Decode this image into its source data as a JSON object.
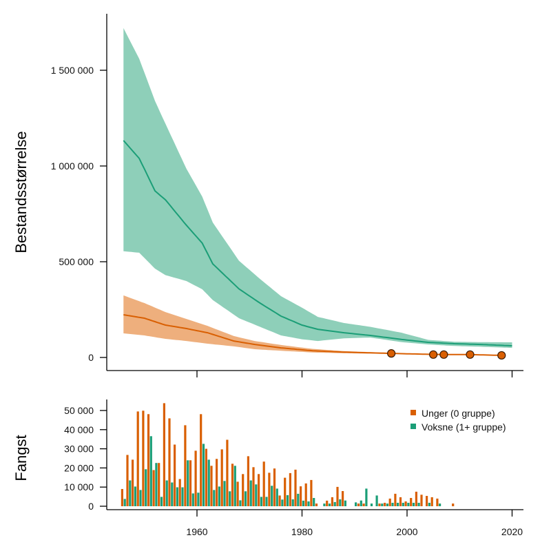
{
  "chart_data": [
    {
      "type": "line",
      "panel": "top",
      "title": "",
      "xlabel": "",
      "ylabel": "Bestandsstørrelse",
      "xlim": [
        1944,
        2022
      ],
      "ylim": [
        -50000,
        1800000
      ],
      "xticks": [
        1960,
        1980,
        2000,
        2020
      ],
      "yticks": [
        0,
        500000,
        1000000,
        1500000
      ],
      "ytick_labels": [
        "0",
        "500 000",
        "1 000 000",
        "1 500 000"
      ],
      "grid": false,
      "series": [
        {
          "name": "Voksne (1+ gruppe)",
          "color": "#1b9e77",
          "band_color": "#8ecfb9",
          "x": [
            1946,
            1949,
            1952,
            1954,
            1958,
            1961,
            1963,
            1968,
            1972,
            1976,
            1980,
            1983,
            1988,
            1993,
            1999,
            2004,
            2009,
            2014,
            2020
          ],
          "median": [
            1133000,
            1040000,
            870000,
            823000,
            690000,
            597000,
            489000,
            358000,
            284000,
            216000,
            169000,
            147000,
            129000,
            115000,
            94000,
            79000,
            72000,
            68000,
            61000
          ],
          "upper": [
            1720000,
            1560000,
            1340000,
            1220000,
            985000,
            840000,
            705000,
            505000,
            410000,
            320000,
            260000,
            212000,
            180000,
            160000,
            129000,
            92000,
            82000,
            80000,
            79000
          ],
          "lower": [
            555000,
            547000,
            464000,
            430000,
            399000,
            356000,
            300000,
            205000,
            160000,
            115000,
            95000,
            86000,
            100000,
            104000,
            80000,
            68000,
            60000,
            56000,
            50000
          ]
        },
        {
          "name": "Unger (0 gruppe)",
          "color": "#d95f02",
          "band_color": "#eeaf7d",
          "x": [
            1946,
            1950,
            1954,
            1958,
            1962,
            1967,
            1971,
            1976,
            1982,
            1988,
            1997,
            2005,
            2012,
            2018
          ],
          "median": [
            223000,
            205000,
            169000,
            151000,
            129000,
            86000,
            68000,
            50000,
            35000,
            28000,
            21000,
            16000,
            15000,
            11000
          ],
          "upper": [
            324000,
            284000,
            237000,
            201000,
            165000,
            112000,
            86000,
            65000,
            45000,
            33000,
            24000,
            17000,
            16000,
            12000
          ],
          "lower": [
            126000,
            115000,
            97000,
            86000,
            72000,
            58000,
            43000,
            35000,
            26000,
            22000,
            19000,
            15000,
            14000,
            10000
          ]
        }
      ],
      "points": {
        "name": "Unger (0 gruppe) observations",
        "color": "#d95f02",
        "x": [
          1997,
          2005,
          2007,
          2012,
          2018
        ],
        "y": [
          21000,
          15000,
          15000,
          15000,
          11000
        ]
      }
    },
    {
      "type": "bar",
      "panel": "bottom",
      "title": "",
      "xlabel": "",
      "ylabel": "Fangst",
      "xlim": [
        1944,
        2022
      ],
      "ylim": [
        0,
        55000
      ],
      "xticks": [
        1960,
        1980,
        2000,
        2020
      ],
      "xtick_labels": [
        "1960",
        "1980",
        "2000",
        "2020"
      ],
      "yticks": [
        0,
        10000,
        20000,
        30000,
        40000,
        50000
      ],
      "ytick_labels": [
        "0",
        "10 000",
        "20 000",
        "30 000",
        "40 000",
        "50 000"
      ],
      "legend": {
        "position": "top-right",
        "entries": [
          "Unger (0 gruppe)",
          "Voksne (1+ gruppe)"
        ]
      },
      "grid": false,
      "categories": [
        1946,
        1947,
        1948,
        1949,
        1950,
        1951,
        1952,
        1953,
        1954,
        1955,
        1956,
        1957,
        1958,
        1959,
        1960,
        1961,
        1962,
        1963,
        1964,
        1965,
        1966,
        1967,
        1968,
        1969,
        1970,
        1971,
        1972,
        1973,
        1974,
        1975,
        1976,
        1977,
        1978,
        1979,
        1980,
        1981,
        1982,
        1983,
        1984,
        1985,
        1986,
        1987,
        1988,
        1989,
        1990,
        1991,
        1992,
        1993,
        1994,
        1995,
        1996,
        1997,
        1998,
        1999,
        2000,
        2001,
        2002,
        2003,
        2004,
        2005,
        2006,
        2007,
        2008,
        2009
      ],
      "series": [
        {
          "name": "Unger (0 gruppe)",
          "color": "#d95f02",
          "values": [
            9000,
            26800,
            24300,
            49500,
            49900,
            48100,
            18900,
            22600,
            53800,
            45900,
            32200,
            14200,
            42300,
            24000,
            29000,
            48100,
            30000,
            21100,
            24700,
            29700,
            34700,
            22200,
            12800,
            16800,
            26100,
            20400,
            16800,
            23300,
            17500,
            19700,
            5600,
            14900,
            17300,
            19100,
            10400,
            11900,
            13700,
            1400,
            0,
            2900,
            4700,
            10100,
            7900,
            0,
            0,
            1400,
            1400,
            0,
            0,
            1400,
            1800,
            4000,
            6500,
            4700,
            2500,
            4300,
            7600,
            6000,
            5400,
            4700,
            4000,
            0,
            0,
            1400
          ]
        },
        {
          "name": "Voksne (1+ gruppe)",
          "color": "#1b9e77",
          "values": [
            3800,
            13500,
            10300,
            8500,
            19300,
            36600,
            22600,
            4900,
            13500,
            12400,
            9900,
            9900,
            24000,
            6700,
            7100,
            32600,
            24300,
            8500,
            10300,
            13200,
            7800,
            21100,
            3100,
            7800,
            13500,
            11400,
            4900,
            4900,
            10700,
            9200,
            3500,
            5800,
            3600,
            6500,
            2900,
            2500,
            4300,
            0,
            1400,
            1400,
            2200,
            3600,
            3000,
            0,
            2000,
            3000,
            9200,
            1400,
            5600,
            1400,
            1400,
            1800,
            1800,
            1800,
            1800,
            1800,
            1800,
            0,
            1800,
            0,
            1400,
            0,
            0,
            0
          ]
        }
      ]
    }
  ]
}
